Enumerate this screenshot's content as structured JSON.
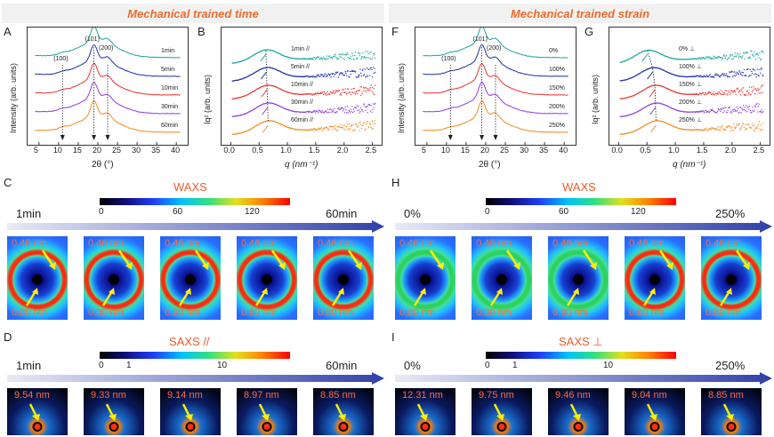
{
  "sections": {
    "left_title": "Mechanical trained time",
    "right_title": "Mechanical trained strain"
  },
  "panels": {
    "A": "A",
    "B": "B",
    "C": "C",
    "D": "D",
    "F": "F",
    "G": "G",
    "H": "H",
    "I": "I"
  },
  "axes": {
    "waxs_xlabel": "2θ (°)",
    "waxs_ylabel": "Intensity (arb. units)",
    "saxs_xlabel": "q (nm⁻¹)",
    "saxs_ylabel": "Iq² (arb. units)",
    "waxs_ticks": [
      "5",
      "10",
      "15",
      "20",
      "25",
      "30",
      "35",
      "40"
    ],
    "saxs_ticks": [
      "0.0",
      "0.5",
      "1.0",
      "1.5",
      "2.0",
      "2.5"
    ]
  },
  "peaks": {
    "p100": "(100)",
    "p101": "(101)",
    "p200": "(200)"
  },
  "series_colors": [
    "#1aa39a",
    "#1b2fa8",
    "#e8322d",
    "#8e3ce0",
    "#f28a1c"
  ],
  "chart_data": [
    {
      "type": "line",
      "panel": "A",
      "title": "",
      "xlabel": "2θ (°)",
      "ylabel": "Intensity (arb. units)",
      "xlim": [
        3,
        42
      ],
      "series": [
        {
          "name": "1min"
        },
        {
          "name": "5min"
        },
        {
          "name": "10min"
        },
        {
          "name": "30min"
        },
        {
          "name": "60min"
        }
      ],
      "peak_positions": [
        11,
        19,
        22.5
      ]
    },
    {
      "type": "scatter",
      "panel": "B",
      "xlabel": "q (nm⁻¹)",
      "ylabel": "Iq² (arb. units)",
      "xlim": [
        -0.1,
        2.6
      ],
      "series": [
        {
          "name": "1min //"
        },
        {
          "name": "5min //"
        },
        {
          "name": "10min //"
        },
        {
          "name": "30min //"
        },
        {
          "name": "60min //"
        }
      ],
      "peak_q": [
        0.62,
        0.63,
        0.64,
        0.65,
        0.66
      ]
    },
    {
      "type": "line",
      "panel": "F",
      "xlabel": "2θ (°)",
      "ylabel": "Intensity (arb. units)",
      "xlim": [
        3,
        42
      ],
      "series": [
        {
          "name": "0%"
        },
        {
          "name": "100%"
        },
        {
          "name": "150%"
        },
        {
          "name": "200%"
        },
        {
          "name": "250%"
        }
      ],
      "peak_positions": [
        11,
        19,
        22.5
      ]
    },
    {
      "type": "scatter",
      "panel": "G",
      "xlabel": "q (nm⁻¹)",
      "ylabel": "Iq² (arb. units)",
      "xlim": [
        -0.1,
        2.6
      ],
      "series": [
        {
          "name": "0% ⊥"
        },
        {
          "name": "100% ⊥"
        },
        {
          "name": "150% ⊥"
        },
        {
          "name": "200% ⊥"
        },
        {
          "name": "250% ⊥"
        }
      ],
      "peak_q": [
        0.51,
        0.6,
        0.64,
        0.65,
        0.66
      ]
    }
  ],
  "waxs_left": {
    "title": "WAXS",
    "bar_labels": [
      "0",
      "60",
      "120"
    ],
    "start": "1min",
    "end": "60min",
    "tiles": [
      {
        "top": "0.46 nm",
        "bottom": "0.80 nm"
      },
      {
        "top": "0.46 nm",
        "bottom": "0.80 nm"
      },
      {
        "top": "0.46 nm",
        "bottom": "0.80 nm"
      },
      {
        "top": "0.46 nm",
        "bottom": "0.80 nm"
      },
      {
        "top": "0.46 nm",
        "bottom": "0.80 nm"
      }
    ],
    "ring_intensity": [
      0.9,
      1.0,
      1.0,
      0.85,
      0.95
    ]
  },
  "waxs_right": {
    "title": "WAXS",
    "bar_labels": [
      "0",
      "60",
      "120"
    ],
    "start": "0%",
    "end": "250%",
    "tiles": [
      {
        "top": "0.46 nm",
        "bottom": "0.80 nm"
      },
      {
        "top": "0.46 nm",
        "bottom": "0.80 nm"
      },
      {
        "top": "0.46 nm",
        "bottom": "0.80 nm"
      },
      {
        "top": "0.46 nm",
        "bottom": "0.80 nm"
      },
      {
        "top": "0.46 nm",
        "bottom": "0.80 nm"
      }
    ],
    "ring_intensity": [
      0.45,
      0.5,
      0.55,
      0.9,
      0.95
    ]
  },
  "saxs_left": {
    "title": "SAXS //",
    "bar_labels": [
      "0",
      "1",
      "10"
    ],
    "start": "1min",
    "end": "60min",
    "tiles": [
      "9.54 nm",
      "9.33 nm",
      "9.14 nm",
      "8.97 nm",
      "8.85 nm"
    ]
  },
  "saxs_right": {
    "title": "SAXS ⊥",
    "bar_labels": [
      "0",
      "1",
      "10"
    ],
    "start": "0%",
    "end": "250%",
    "tiles": [
      "12.31 nm",
      "9.75 nm",
      "9.46 nm",
      "9.04 nm",
      "8.85 nm"
    ]
  }
}
